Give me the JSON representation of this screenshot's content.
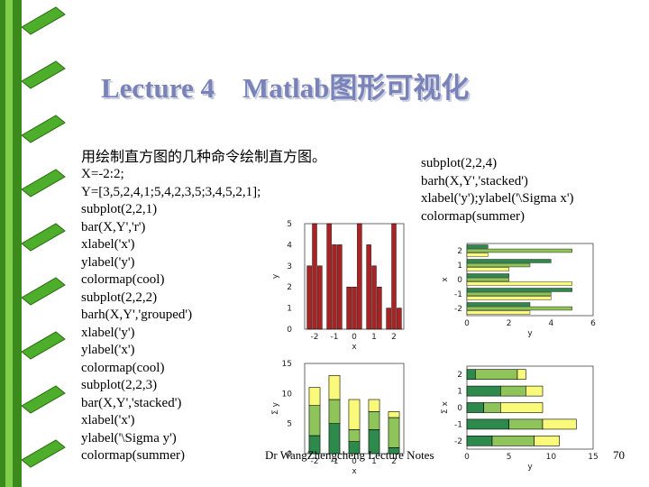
{
  "title": "Lecture 4    Matlab图形可视化",
  "subtitle": "用绘制直方图的几种命令绘制直方图。",
  "code_left": [
    "X=-2:2;",
    "Y=[3,5,2,4,1;5,4,2,3,5;3,4,5,2,1];",
    "subplot(2,2,1)",
    "bar(X,Y','r')",
    "xlabel('x')",
    "ylabel('y')",
    "colormap(cool)",
    "subplot(2,2,2)",
    "barh(X,Y','grouped')",
    "xlabel('y')",
    "ylabel('x')",
    "colormap(cool)",
    "subplot(2,2,3)",
    "bar(X,Y','stacked')",
    "xlabel('x')",
    "ylabel('\\Sigma y')",
    "colormap(summer)"
  ],
  "code_right": [
    "subplot(2,2,4)",
    "barh(X,Y','stacked')",
    "xlabel('y');ylabel('\\Sigma x')",
    "colormap(summer)"
  ],
  "footer": "Dr WangZhengcheng    Lecture Notes",
  "page_number": "70",
  "colors": {
    "title": "#7a83b8",
    "plot1_bar": "#b02020",
    "summer": [
      "#2e8a4c",
      "#8fc45a",
      "#fafa7a"
    ]
  },
  "chart_data": [
    {
      "type": "bar",
      "subplot": "2,2,1",
      "x": [
        -2,
        -1,
        0,
        1,
        2
      ],
      "series": [
        {
          "values": [
            3,
            5,
            2,
            4,
            1
          ]
        },
        {
          "values": [
            5,
            4,
            2,
            3,
            5
          ]
        },
        {
          "values": [
            3,
            4,
            5,
            2,
            1
          ]
        }
      ],
      "xlabel": "x",
      "ylabel": "y",
      "xticks": [
        "-2",
        "-1",
        "0",
        "1",
        "2"
      ],
      "yticks": [
        "0",
        "1",
        "2",
        "3",
        "4",
        "5"
      ],
      "ylim": [
        0,
        5
      ]
    },
    {
      "type": "barh",
      "subplot": "2,2,2",
      "x": [
        -2,
        -1,
        0,
        1,
        2
      ],
      "series": [
        {
          "values": [
            3,
            5,
            2,
            4,
            1
          ]
        },
        {
          "values": [
            5,
            4,
            2,
            3,
            5
          ]
        },
        {
          "values": [
            3,
            4,
            5,
            2,
            1
          ]
        }
      ],
      "xlabel": "y",
      "ylabel": "x",
      "xticks": [
        "0",
        "2",
        "4",
        "6"
      ],
      "yticks": [
        "-2",
        "-1",
        "0",
        "1",
        "2"
      ],
      "xlim": [
        0,
        6
      ]
    },
    {
      "type": "bar",
      "stacked": true,
      "subplot": "2,2,3",
      "x": [
        -2,
        -1,
        0,
        1,
        2
      ],
      "series": [
        {
          "values": [
            3,
            5,
            2,
            4,
            1
          ]
        },
        {
          "values": [
            5,
            4,
            2,
            3,
            5
          ]
        },
        {
          "values": [
            3,
            4,
            5,
            2,
            1
          ]
        }
      ],
      "xlabel": "x",
      "ylabel": "Σ y",
      "xticks": [
        "-2",
        "-1",
        "0",
        "1",
        "2"
      ],
      "yticks": [
        "0",
        "5",
        "10",
        "15"
      ],
      "ylim": [
        0,
        15
      ]
    },
    {
      "type": "barh",
      "stacked": true,
      "subplot": "2,2,4",
      "x": [
        -2,
        -1,
        0,
        1,
        2
      ],
      "series": [
        {
          "values": [
            3,
            5,
            2,
            4,
            1
          ]
        },
        {
          "values": [
            5,
            4,
            2,
            3,
            5
          ]
        },
        {
          "values": [
            3,
            4,
            5,
            2,
            1
          ]
        }
      ],
      "xlabel": "y",
      "ylabel": "Σ x",
      "xticks": [
        "0",
        "5",
        "10",
        "15"
      ],
      "yticks": [
        "-2",
        "-1",
        "0",
        "1",
        "2"
      ],
      "xlim": [
        0,
        15
      ]
    }
  ]
}
